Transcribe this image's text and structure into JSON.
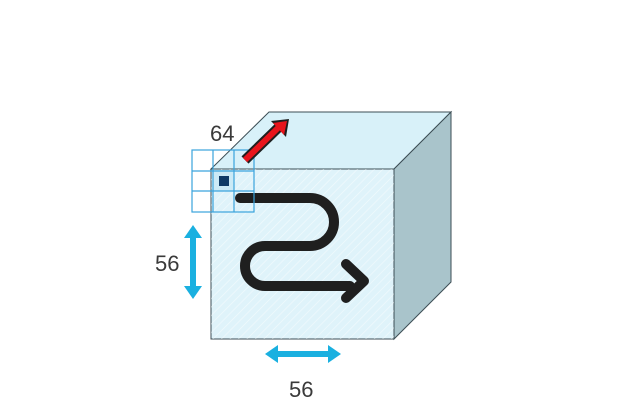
{
  "diagram": {
    "depth_label": "64",
    "height_label": "56",
    "width_label": "56",
    "colors": {
      "front_face": "#dff3fa",
      "top_face": "#d8f1f9",
      "side_face": "#a9c4cb",
      "edge": "#3c4e55",
      "kernel_grid": "#3aa3dd",
      "kernel_center": "#0e3a66",
      "depth_arrow": "#e8141b",
      "dimension_arrow": "#1ab0e0",
      "scan_path": "#1f1f1f"
    }
  }
}
